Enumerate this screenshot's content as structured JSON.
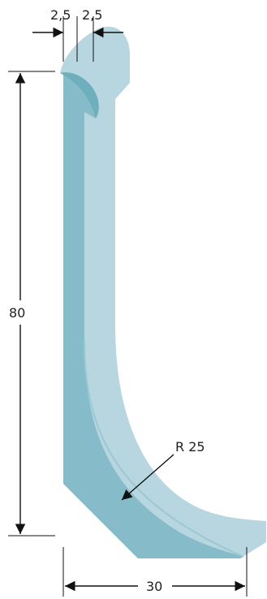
{
  "dimensions": {
    "top_left_thickness": "2,5",
    "top_right_thickness": "2,5",
    "height": "80",
    "width": "30",
    "radius": "R 25"
  },
  "colors": {
    "profile_light": "#b7d6df",
    "profile_dark": "#86bcc9",
    "profile_edge": "#6faebd",
    "dimension_lines": "#111111",
    "text": "#222222",
    "background": "#ffffff"
  }
}
